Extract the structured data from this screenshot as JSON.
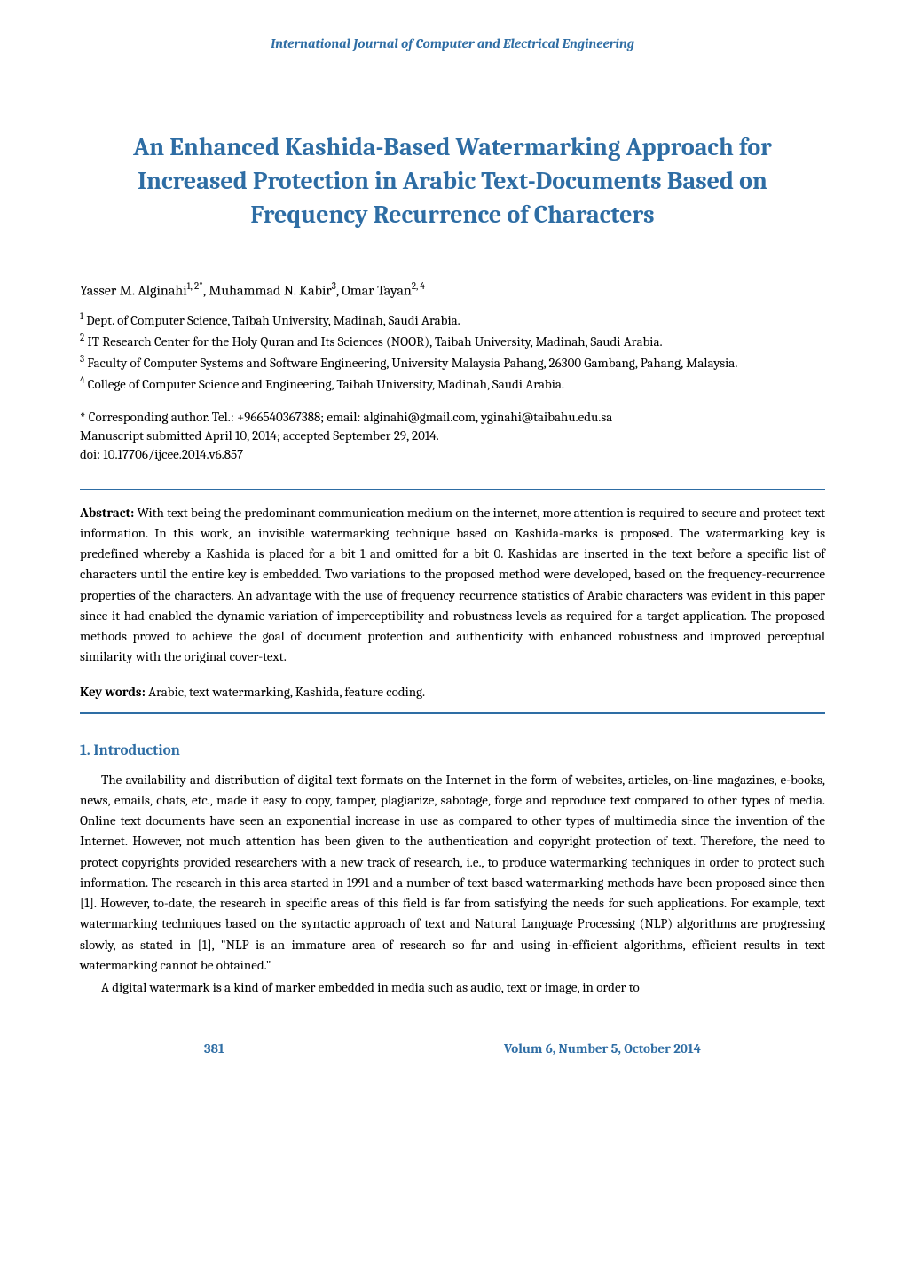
{
  "journal_name": "International Journal of Computer and Electrical Engineering",
  "title": "An Enhanced Kashida-Based Watermarking Approach for Increased Protection in Arabic Text-Documents Based on Frequency Recurrence of Characters",
  "authors_line": "Yasser M. Alginahi",
  "authors_sup1": "1, 2*",
  "authors_mid": ", Muhammad N. Kabir",
  "authors_sup2": "3",
  "authors_mid2": ", Omar Tayan",
  "authors_sup3": "2, 4",
  "affiliations": {
    "a1_sup": "1",
    "a1": " Dept. of Computer Science, Taibah University, Madinah, Saudi Arabia.",
    "a2_sup": "2",
    "a2": " IT Research Center for the Holy Quran and Its Sciences (NOOR), Taibah University, Madinah, Saudi Arabia.",
    "a3_sup": "3",
    "a3": " Faculty of Computer Systems and Software Engineering, University Malaysia Pahang, 26300 Gambang, Pahang, Malaysia.",
    "a4_sup": "4",
    "a4": " College of Computer Science and Engineering, Taibah University, Madinah, Saudi Arabia."
  },
  "correspondence": {
    "line1": "* Corresponding author. Tel.: +966540367388; email: alginahi@gmail.com, yginahi@taibahu.edu.sa",
    "line2": "Manuscript submitted April 10, 2014; accepted September 29, 2014.",
    "line3": "doi: 10.17706/ijcee.2014.v6.857"
  },
  "abstract_label": "Abstract:",
  "abstract_text": " With text being the predominant communication medium on the internet, more attention is required to secure and protect text information. In this work, an invisible watermarking technique based on Kashida-marks is proposed. The watermarking key is predefined whereby a Kashida is placed for a bit 1 and omitted for a bit 0. Kashidas are inserted in the text before a specific list of characters until the entire key is embedded. Two variations to the proposed method were developed, based on the frequency-recurrence properties of the characters.  An advantage with the use of frequency recurrence statistics of Arabic characters was evident in this paper since it had enabled the dynamic variation of imperceptibility and robustness levels as required for a target application.   The proposed methods proved to achieve the goal of document protection and authenticity with enhanced robustness and improved perceptual similarity with the original cover-text.",
  "keywords_label": "Key words:",
  "keywords_text": " Arabic, text watermarking, Kashida, feature coding.",
  "sections": {
    "s1_heading": "1.   Introduction",
    "s1_p1": "The availability and distribution of digital text formats on the Internet in the form of websites, articles, on-line magazines, e-books, news, emails, chats, etc., made it easy to copy, tamper, plagiarize, sabotage, forge and reproduce text compared to other types of media. Online text documents have seen an exponential increase in use as compared to other types of multimedia since the invention of the Internet. However, not much attention has been given to the authentication and copyright protection of text. Therefore, the need to protect copyrights provided researchers with a new track of research, i.e., to produce watermarking techniques in order to protect such information. The research in this area started in 1991 and a number of text based watermarking methods have been proposed since then [1]. However, to-date, the research in specific areas of this field is far from satisfying the needs for such applications. For example, text watermarking techniques based on the syntactic approach of text and Natural Language Processing (NLP) algorithms are progressing slowly, as stated in [1], \"NLP is an immature area of research so far and using in-efficient algorithms, efficient results in text watermarking cannot be obtained.\"",
    "s1_p2": "A digital watermark is a kind of marker embedded in media such as audio, text or image, in order to"
  },
  "footer": {
    "page_number": "381",
    "issue": "Volum 6, Number 5, October 2014"
  },
  "colors": {
    "brand": "#2e6da4",
    "text": "#000000",
    "background": "#ffffff"
  },
  "typography": {
    "title_fontsize": 28,
    "body_fontsize": 15,
    "heading_fontsize": 17,
    "journal_fontsize": 15,
    "font_family": "Cambria, Georgia, serif"
  }
}
